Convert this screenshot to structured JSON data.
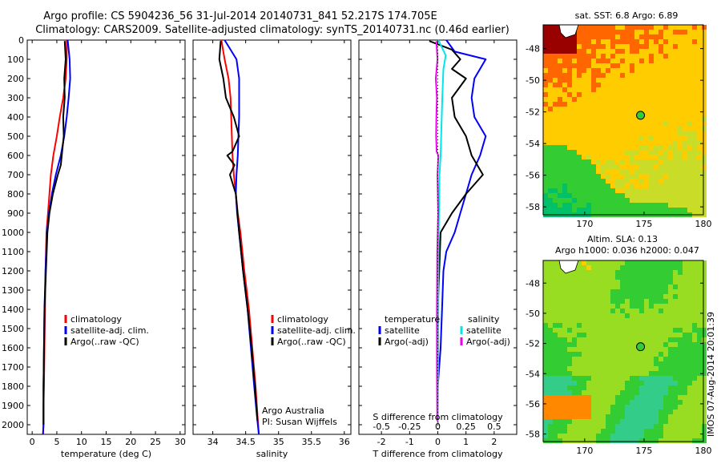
{
  "header": {
    "line1": "Argo profile: CS 5904236_56 31-Jul-2014 20140731_841 52.217S 174.705E",
    "line2": "Climatology: CARS2009. Satellite-adjusted climatology: synTS_20140731.nc (0.46d earlier)"
  },
  "colors": {
    "climatology": "#ff0000",
    "satellite": "#0000ff",
    "argo": "#000000",
    "salinity_satellite": "#00e5ee",
    "salinity_argo": "#ee00ee"
  },
  "chart_data": [
    {
      "type": "line",
      "name": "temperature-profile",
      "xlabel": "temperature (deg C)",
      "ylabel": "",
      "xlim": [
        -1,
        31
      ],
      "ylim": [
        2050,
        0
      ],
      "xticks": [
        0,
        5,
        10,
        15,
        20,
        25,
        30
      ],
      "yticks": [
        0,
        100,
        200,
        300,
        400,
        500,
        600,
        700,
        800,
        900,
        1000,
        1100,
        1200,
        1300,
        1400,
        1500,
        1600,
        1700,
        1800,
        1900,
        2000
      ],
      "legend": [
        "climatology",
        "satellite-adj. clim.",
        "Argo(..raw -QC)"
      ],
      "series": [
        {
          "name": "climatology",
          "x": [
            7.0,
            7.0,
            6.8,
            6.3,
            5.6,
            5.0,
            4.3,
            3.8,
            3.5,
            3.2,
            2.9,
            2.7,
            2.6,
            2.5,
            2.4,
            2.3,
            2.3,
            2.2
          ],
          "y": [
            0,
            100,
            200,
            300,
            400,
            500,
            600,
            700,
            800,
            900,
            1000,
            1200,
            1400,
            1600,
            1800,
            1900,
            2000,
            2050
          ]
        },
        {
          "name": "satellite-adj. clim.",
          "x": [
            7.2,
            7.6,
            7.7,
            7.4,
            7.0,
            6.5,
            5.8,
            4.8,
            4.0,
            3.4,
            3.0,
            2.7,
            2.5,
            2.4,
            2.3,
            2.3,
            2.2
          ],
          "y": [
            0,
            100,
            200,
            300,
            400,
            500,
            600,
            700,
            800,
            900,
            1000,
            1200,
            1400,
            1600,
            1800,
            2000,
            2050
          ]
        },
        {
          "name": "Argo(..raw -QC)",
          "x": [
            6.6,
            6.8,
            6.5,
            6.6,
            6.3,
            6.4,
            6.0,
            5.8,
            5.2,
            4.2,
            3.5,
            3.1,
            2.8,
            2.5,
            2.4,
            2.3,
            2.3
          ],
          "y": [
            5,
            100,
            200,
            300,
            400,
            500,
            600,
            650,
            700,
            800,
            900,
            1000,
            1200,
            1400,
            1600,
            1800,
            2000
          ]
        }
      ]
    },
    {
      "type": "line",
      "name": "salinity-profile",
      "xlabel": "salinity",
      "ylabel": "",
      "xlim": [
        33.7,
        36.1
      ],
      "ylim": [
        2050,
        0
      ],
      "xticks": [
        34,
        34.5,
        35,
        35.5,
        36
      ],
      "legend": [
        "climatology",
        "satellite-adj. clim.",
        "Argo(..raw -QC)"
      ],
      "series": [
        {
          "name": "climatology",
          "x": [
            34.13,
            34.18,
            34.24,
            34.27,
            34.28,
            34.29,
            34.3,
            34.32,
            34.35,
            34.38,
            34.42,
            34.48,
            34.55,
            34.6,
            34.65,
            34.68,
            34.7
          ],
          "y": [
            0,
            100,
            200,
            300,
            400,
            500,
            600,
            700,
            800,
            900,
            1000,
            1200,
            1400,
            1600,
            1800,
            1950,
            2050
          ]
        },
        {
          "name": "satellite-adj. clim.",
          "x": [
            34.18,
            34.36,
            34.4,
            34.4,
            34.4,
            34.39,
            34.38,
            34.36,
            34.35,
            34.37,
            34.4,
            34.46,
            34.53,
            34.58,
            34.63,
            34.67,
            34.7
          ],
          "y": [
            0,
            100,
            200,
            300,
            400,
            500,
            600,
            700,
            800,
            900,
            1000,
            1200,
            1400,
            1600,
            1800,
            1950,
            2050
          ]
        },
        {
          "name": "Argo(..raw -QC)",
          "x": [
            34.12,
            34.1,
            34.16,
            34.2,
            34.32,
            34.4,
            34.3,
            34.22,
            34.33,
            34.26,
            34.35,
            34.4,
            34.46,
            34.53,
            34.59,
            34.64,
            34.68
          ],
          "y": [
            5,
            100,
            200,
            300,
            400,
            500,
            580,
            600,
            650,
            700,
            800,
            1000,
            1200,
            1400,
            1600,
            1800,
            1980
          ]
        }
      ]
    },
    {
      "type": "line",
      "name": "difference-profile",
      "xlabel": "T difference from climatology",
      "xlabel2": "S difference from climatology",
      "xlim": [
        -2.8,
        2.8
      ],
      "ylim": [
        2050,
        0
      ],
      "xticks": [
        -2,
        -1,
        0,
        1,
        2
      ],
      "xticks_s": [
        -0.5,
        -0.25,
        0,
        0.25,
        0.5
      ],
      "legend_titles": [
        "temperature",
        "salinity"
      ],
      "legend_t": [
        "satellite",
        "Argo(-adj)"
      ],
      "legend_s": [
        "satellite",
        "Argo(-adj)"
      ],
      "series": [
        {
          "name": "T satellite",
          "x": [
            0.3,
            0.6,
            1.7,
            1.3,
            1.2,
            1.3,
            1.7,
            1.5,
            1.2,
            1.0,
            0.8,
            0.6,
            0.3,
            0.2,
            0.15,
            0.1,
            0.0,
            0.0
          ],
          "y": [
            0,
            60,
            100,
            200,
            300,
            400,
            500,
            600,
            700,
            800,
            900,
            1000,
            1100,
            1200,
            1400,
            1600,
            1800,
            2000
          ]
        },
        {
          "name": "T Argo(-adj)",
          "x": [
            -0.3,
            0.5,
            0.8,
            0.5,
            1.0,
            0.5,
            0.6,
            1.0,
            1.2,
            1.6,
            1.0,
            0.5,
            0.1,
            0.05,
            0.0,
            0.0,
            0.0
          ],
          "y": [
            5,
            50,
            100,
            150,
            200,
            300,
            400,
            500,
            600,
            700,
            800,
            900,
            1000,
            1200,
            1400,
            1700,
            2000
          ]
        },
        {
          "name": "S satellite",
          "x": [
            0.02,
            0.28,
            0.2,
            0.16,
            0.14,
            0.12,
            0.1,
            0.06,
            0.05,
            0.04,
            0.03,
            0.02,
            0.02,
            0.01,
            0.0
          ],
          "y": [
            0,
            80,
            150,
            300,
            400,
            500,
            600,
            700,
            800,
            900,
            1000,
            1200,
            1400,
            1700,
            2000
          ]
        },
        {
          "name": "S Argo(-adj)",
          "x": [
            -0.05,
            -0.01,
            -0.07,
            -0.03,
            -0.05,
            -0.06,
            -0.04,
            0.02,
            -0.01,
            0.01,
            -0.02,
            -0.03,
            -0.03,
            -0.02
          ],
          "y": [
            5,
            100,
            200,
            300,
            400,
            500,
            580,
            600,
            700,
            900,
            1100,
            1400,
            1700,
            1980
          ]
        }
      ]
    },
    {
      "type": "heatmap",
      "name": "sst-map",
      "title": "sat. SST: 6.8  Argo: 6.89",
      "xlim": [
        166.5,
        180
      ],
      "ylim": [
        -58.5,
        -46.5
      ],
      "xticks": [
        170,
        175,
        180
      ],
      "yticks": [
        -48,
        -50,
        -52,
        -54,
        -56,
        -58
      ],
      "argo_location": {
        "lon": 174.705,
        "lat": -52.217
      }
    },
    {
      "type": "heatmap",
      "name": "sla-map",
      "title1": "Altim. SLA: 0.13",
      "title2": "Argo h1000: 0.036 h2000: 0.047",
      "xlim": [
        166.5,
        180
      ],
      "ylim": [
        -58.5,
        -46.5
      ],
      "xticks": [
        170,
        175,
        180
      ],
      "yticks": [
        -48,
        -50,
        -52,
        -54,
        -56,
        -58
      ],
      "argo_location": {
        "lon": 174.705,
        "lat": -52.217
      }
    }
  ],
  "panels": {
    "salinity_note1": "Argo Australia",
    "salinity_note2": "PI: Susan Wijffels"
  },
  "watermark": "IMOS 07-Aug-2014 20:01:39"
}
